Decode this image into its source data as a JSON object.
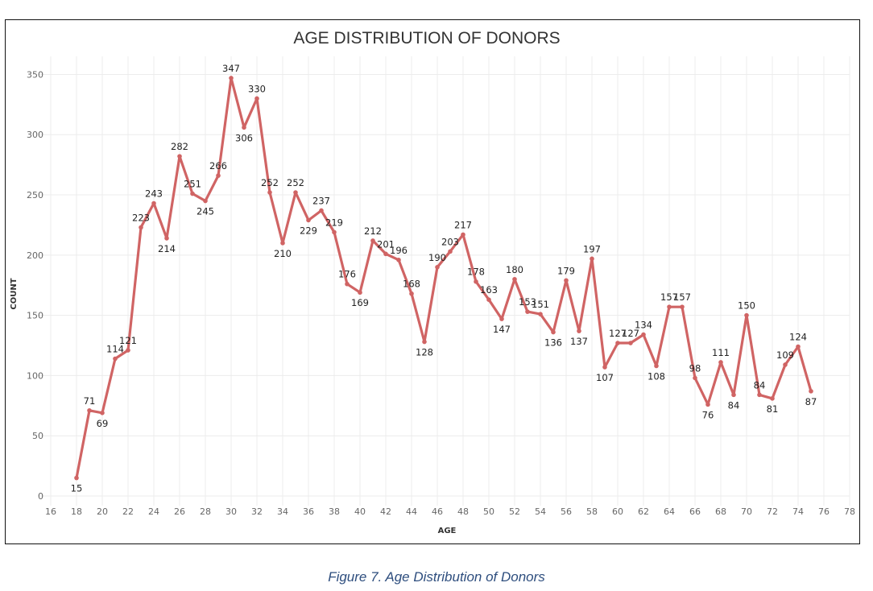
{
  "caption": "Figure 7. Age Distribution of Donors",
  "chart_data": {
    "type": "line",
    "title": "AGE DISTRIBUTION OF DONORS",
    "xlabel": "AGE",
    "ylabel": "COUNT",
    "xlim": [
      15,
      78
    ],
    "ylim": [
      -8,
      365
    ],
    "x_ticks": [
      16,
      18,
      20,
      22,
      24,
      26,
      28,
      30,
      32,
      34,
      36,
      38,
      40,
      42,
      44,
      46,
      48,
      50,
      52,
      54,
      56,
      58,
      60,
      62,
      64,
      66,
      68,
      70,
      72,
      74,
      76,
      78
    ],
    "y_ticks": [
      0,
      50,
      100,
      150,
      200,
      250,
      300,
      350
    ],
    "grid": true,
    "line_color": "#d06464",
    "series": [
      {
        "x": [
          18,
          19,
          20,
          21,
          22,
          23,
          24,
          25,
          26,
          27,
          28,
          29,
          30,
          31,
          32,
          33,
          34,
          35,
          36,
          37,
          38,
          39,
          40,
          41,
          42,
          43,
          44,
          45,
          46,
          47,
          48,
          49,
          50,
          51,
          52,
          53,
          54,
          55,
          56,
          57,
          58,
          59,
          60,
          61,
          62,
          63,
          64,
          65,
          66,
          67,
          68,
          69,
          70,
          71,
          72,
          73,
          74,
          75
        ],
        "y": [
          15,
          71,
          69,
          114,
          121,
          223,
          243,
          214,
          282,
          251,
          245,
          266,
          347,
          306,
          330,
          252,
          210,
          252,
          229,
          237,
          219,
          176,
          169,
          212,
          201,
          196,
          168,
          128,
          190,
          203,
          217,
          178,
          163,
          147,
          180,
          153,
          151,
          136,
          179,
          137,
          197,
          107,
          127,
          127,
          134,
          108,
          157,
          157,
          98,
          76,
          111,
          84,
          150,
          84,
          81,
          109,
          124,
          87
        ]
      }
    ]
  }
}
